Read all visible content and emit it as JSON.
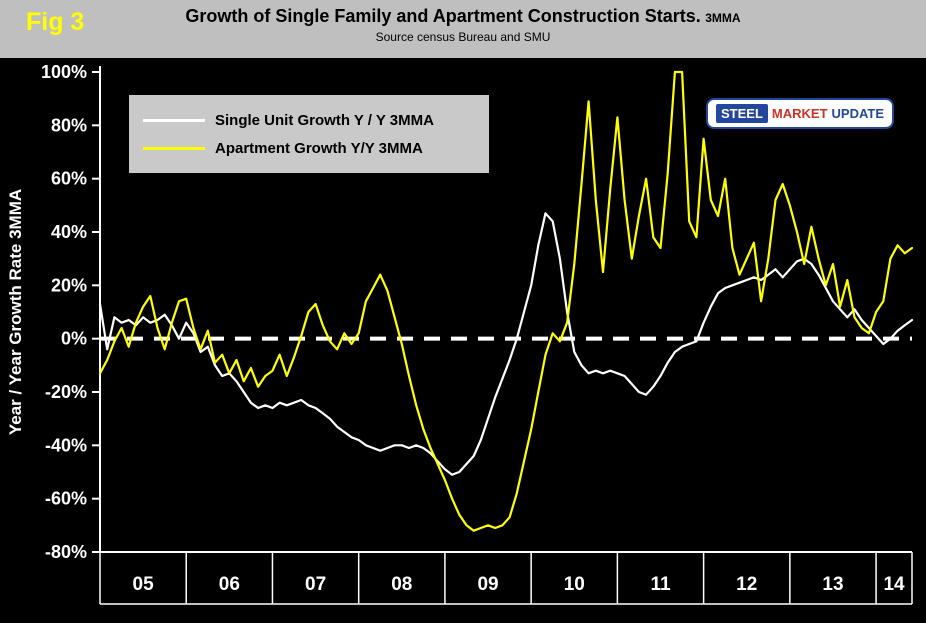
{
  "fig_label": "Fig 3",
  "header": {
    "title": "Growth of Single Family and Apartment Construction Starts.",
    "title_suffix": "3MMA",
    "subtitle": "Source census Bureau and SMU"
  },
  "y_axis_title": "Year / Year Growth Rate 3MMA",
  "legend": {
    "items": [
      {
        "label": "Single Unit Growth Y / Y 3MMA",
        "color": "#ffffff"
      },
      {
        "label": "Apartment Growth Y/Y 3MMA",
        "color": "#ffff00"
      }
    ]
  },
  "logo": {
    "steel": "STEEL",
    "market": "MARKET",
    "update": "UPDATE"
  },
  "colors": {
    "plot_background": "#000000",
    "header_background": "#bfbfbf",
    "legend_background": "#c9c9c9",
    "axis": "#ffffff",
    "zero_line": "#ffffff",
    "fig_label": "#ffff00",
    "single_series": "#ffffff",
    "apartment_series": "#ffff00",
    "logo_blue": "#23479c",
    "logo_red": "#cc3322"
  },
  "chart_data": {
    "type": "line",
    "title": "Growth of Single Family and Apartment Construction Starts. 3MMA",
    "subtitle": "Source census Bureau and SMU",
    "ylabel": "Year / Year Growth Rate 3MMA",
    "ylim": [
      -80,
      100
    ],
    "y_ticks": [
      100,
      80,
      60,
      40,
      20,
      0,
      -20,
      -40,
      -60,
      -80
    ],
    "y_tick_labels": [
      "100%",
      "80%",
      "60%",
      "40%",
      "20%",
      "0%",
      "-20%",
      "-40%",
      "-60%",
      "-80%"
    ],
    "x_unit": "month",
    "frequency": "monthly",
    "x_range": [
      "2005-01",
      "2014-06"
    ],
    "year_labels": [
      "05",
      "06",
      "07",
      "08",
      "09",
      "10",
      "11",
      "12",
      "13",
      "14"
    ],
    "zero_line_dashed": true,
    "legend_position": "upper-left",
    "grid": false,
    "series": [
      {
        "name": "Single Unit Growth Y / Y 3MMA",
        "color": "#ffffff",
        "values": [
          13,
          -4,
          8,
          6,
          7,
          5,
          8,
          6,
          7,
          9,
          5,
          0,
          6,
          2,
          -5,
          -3,
          -10,
          -14,
          -13,
          -16,
          -20,
          -24,
          -26,
          -25,
          -26,
          -24,
          -25,
          -24,
          -23,
          -25,
          -26,
          -28,
          -30,
          -33,
          -35,
          -37,
          -38,
          -40,
          -41,
          -42,
          -41,
          -40,
          -40,
          -41,
          -40,
          -41,
          -43,
          -46,
          -49,
          -51,
          -50,
          -47,
          -44,
          -38,
          -30,
          -22,
          -15,
          -8,
          0,
          10,
          20,
          35,
          47,
          44,
          30,
          10,
          -5,
          -10,
          -13,
          -12,
          -13,
          -12,
          -13,
          -14,
          -17,
          -20,
          -21,
          -18,
          -14,
          -9,
          -5,
          -3,
          -2,
          -1,
          6,
          12,
          17,
          19,
          20,
          21,
          22,
          23,
          22,
          24,
          26,
          23,
          26,
          29,
          30,
          28,
          24,
          19,
          14,
          11,
          8,
          11,
          7,
          4,
          1,
          -2,
          0,
          3,
          5,
          7
        ]
      },
      {
        "name": "Apartment Growth Y/Y 3MMA",
        "color": "#ffff00",
        "values": [
          -13,
          -8,
          -1,
          4,
          -3,
          6,
          12,
          16,
          4,
          -4,
          6,
          14,
          15,
          4,
          -4,
          3,
          -9,
          -6,
          -13,
          -8,
          -16,
          -11,
          -18,
          -14,
          -12,
          -6,
          -14,
          -7,
          1,
          10,
          13,
          5,
          -1,
          -4,
          2,
          -2,
          2,
          14,
          19,
          24,
          18,
          8,
          -2,
          -14,
          -25,
          -34,
          -41,
          -47,
          -53,
          -60,
          -66,
          -70,
          -72,
          -71,
          -70,
          -71,
          -70,
          -67,
          -58,
          -46,
          -34,
          -20,
          -6,
          2,
          -1,
          6,
          28,
          58,
          89,
          52,
          25,
          56,
          83,
          52,
          30,
          46,
          60,
          38,
          34,
          62,
          100,
          100,
          44,
          38,
          75,
          52,
          46,
          60,
          34,
          24,
          30,
          36,
          14,
          30,
          52,
          58,
          50,
          40,
          28,
          42,
          30,
          20,
          28,
          12,
          22,
          8,
          4,
          2,
          10,
          14,
          30,
          35,
          32,
          34
        ]
      }
    ]
  }
}
